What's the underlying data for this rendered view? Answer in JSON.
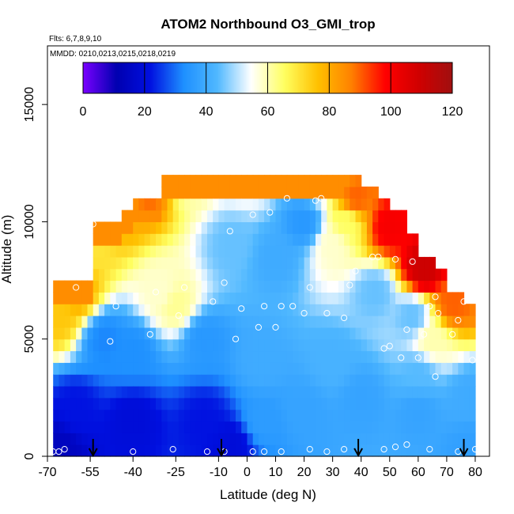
{
  "chart_data": {
    "type": "heatmap",
    "title": "ATOM2 Northbound O3_GMI_trop",
    "subtitle_flights": "Flts: 6,7,8,9,10",
    "subtitle_dates": "MMDD: 0210,0213,0215,0218,0219",
    "xlabel": "Latitude (deg N)",
    "ylabel": "Altitude (m)",
    "xlim": [
      -70,
      85
    ],
    "ylim": [
      0,
      17500
    ],
    "x_ticks": [
      "-70",
      "-55",
      "-40",
      "-25",
      "-10",
      "0",
      "10",
      "20",
      "30",
      "40",
      "50",
      "60",
      "70",
      "80"
    ],
    "x_tick_values": [
      -70,
      -55,
      -40,
      -25,
      -10,
      0,
      10,
      20,
      30,
      40,
      50,
      60,
      70,
      80
    ],
    "y_ticks": [
      "0",
      "5000",
      "10000",
      "15000"
    ],
    "y_tick_values": [
      0,
      5000,
      10000,
      15000
    ],
    "colorbar": {
      "min": 0,
      "max": 120,
      "ticks": [
        "0",
        "20",
        "40",
        "60",
        "80",
        "100",
        "120"
      ],
      "tick_values": [
        0,
        20,
        40,
        60,
        80,
        100,
        120
      ],
      "colors": [
        "#7a00ff",
        "#0000b0",
        "#0010e0",
        "#1e90ff",
        "#50b8ff",
        "#ffffff",
        "#ffff60",
        "#ffc000",
        "#ff8000",
        "#ff0000",
        "#d00000",
        "#a01010"
      ]
    },
    "domain_lat": [
      -68,
      80
    ],
    "altitude_bins_m": [
      0,
      500,
      1000,
      1500,
      2000,
      2500,
      3000,
      3500,
      4000,
      4500,
      5000,
      5500,
      6000,
      6500,
      7000,
      7500,
      8000,
      8500,
      9000,
      9500,
      10000,
      10500,
      11000,
      11500,
      12000
    ],
    "top_altitude_by_lat": [
      [
        -68,
        7500
      ],
      [
        -60,
        7500
      ],
      [
        -55,
        10000
      ],
      [
        -50,
        10000
      ],
      [
        -45,
        10500
      ],
      [
        -40,
        11000
      ],
      [
        -30,
        12000
      ],
      [
        -10,
        12000
      ],
      [
        20,
        12000
      ],
      [
        35,
        12000
      ],
      [
        40,
        11500
      ],
      [
        45,
        11000
      ],
      [
        50,
        10500
      ],
      [
        55,
        9500
      ],
      [
        60,
        8500
      ],
      [
        65,
        8000
      ],
      [
        70,
        7000
      ],
      [
        75,
        6500
      ],
      [
        80,
        5000
      ]
    ],
    "field_points": [
      {
        "lat": -66,
        "alt": 6000,
        "o3": 75
      },
      {
        "lat": -60,
        "alt": 7000,
        "o3": 80
      },
      {
        "lat": -55,
        "alt": 9000,
        "o3": 70
      },
      {
        "lat": -45,
        "alt": 10500,
        "o3": 80
      },
      {
        "lat": -35,
        "alt": 11500,
        "o3": 90
      },
      {
        "lat": -20,
        "alt": 11800,
        "o3": 60
      },
      {
        "lat": 0,
        "alt": 11800,
        "o3": 55
      },
      {
        "lat": 25,
        "alt": 11800,
        "o3": 55
      },
      {
        "lat": 38,
        "alt": 11000,
        "o3": 90
      },
      {
        "lat": 50,
        "alt": 9800,
        "o3": 100
      },
      {
        "lat": 62,
        "alt": 8000,
        "o3": 110
      },
      {
        "lat": 72,
        "alt": 6500,
        "o3": 90
      },
      {
        "lat": -30,
        "alt": 7000,
        "o3": 58
      },
      {
        "lat": -25,
        "alt": 6500,
        "o3": 62
      },
      {
        "lat": -5,
        "alt": 9000,
        "o3": 45
      },
      {
        "lat": 10,
        "alt": 8500,
        "o3": 40
      },
      {
        "lat": 20,
        "alt": 10000,
        "o3": 35
      },
      {
        "lat": 30,
        "alt": 9000,
        "o3": 58
      },
      {
        "lat": 35,
        "alt": 10000,
        "o3": 65
      },
      {
        "lat": 45,
        "alt": 7000,
        "o3": 45
      },
      {
        "lat": 58,
        "alt": 6000,
        "o3": 45
      },
      {
        "lat": 65,
        "alt": 5000,
        "o3": 60
      },
      {
        "lat": -50,
        "alt": 5000,
        "o3": 32
      },
      {
        "lat": -40,
        "alt": 4500,
        "o3": 33
      },
      {
        "lat": -15,
        "alt": 5000,
        "o3": 35
      },
      {
        "lat": 5,
        "alt": 4000,
        "o3": 40
      },
      {
        "lat": 30,
        "alt": 4000,
        "o3": 42
      },
      {
        "lat": 60,
        "alt": 3500,
        "o3": 44
      },
      {
        "lat": -60,
        "alt": 2000,
        "o3": 22
      },
      {
        "lat": -40,
        "alt": 1500,
        "o3": 20
      },
      {
        "lat": -15,
        "alt": 1500,
        "o3": 22
      },
      {
        "lat": -5,
        "alt": 500,
        "o3": 20
      },
      {
        "lat": 5,
        "alt": 1500,
        "o3": 36
      },
      {
        "lat": 20,
        "alt": 2000,
        "o3": 38
      },
      {
        "lat": 40,
        "alt": 2500,
        "o3": 38
      },
      {
        "lat": 60,
        "alt": 2000,
        "o3": 38
      },
      {
        "lat": 78,
        "alt": 2500,
        "o3": 40
      },
      {
        "lat": -66,
        "alt": 300,
        "o3": 14
      },
      {
        "lat": 78,
        "alt": 300,
        "o3": 37
      }
    ],
    "flight_points": [
      {
        "lat": -68,
        "alt": 200
      },
      {
        "lat": -66,
        "alt": 200
      },
      {
        "lat": -64,
        "alt": 300
      },
      {
        "lat": -60,
        "alt": 7200
      },
      {
        "lat": -58,
        "alt": 9600
      },
      {
        "lat": -56,
        "alt": 9800
      },
      {
        "lat": -54,
        "alt": 9900
      },
      {
        "lat": -52,
        "alt": 10500
      },
      {
        "lat": -48,
        "alt": 10600
      },
      {
        "lat": -46,
        "alt": 10600
      },
      {
        "lat": -44,
        "alt": 10700
      },
      {
        "lat": -40,
        "alt": 11300
      },
      {
        "lat": -36,
        "alt": 11700
      },
      {
        "lat": -32,
        "alt": 11800
      },
      {
        "lat": -48,
        "alt": 4900
      },
      {
        "lat": -46,
        "alt": 6400
      },
      {
        "lat": -34,
        "alt": 5200
      },
      {
        "lat": -32,
        "alt": 7000
      },
      {
        "lat": -24,
        "alt": 6000
      },
      {
        "lat": -22,
        "alt": 7200
      },
      {
        "lat": -12,
        "alt": 6600
      },
      {
        "lat": -8,
        "alt": 7400
      },
      {
        "lat": -6,
        "alt": 9600
      },
      {
        "lat": -4,
        "alt": 5000
      },
      {
        "lat": -2,
        "alt": 6300
      },
      {
        "lat": 2,
        "alt": 10300
      },
      {
        "lat": 4,
        "alt": 5500
      },
      {
        "lat": 6,
        "alt": 6400
      },
      {
        "lat": 8,
        "alt": 10400
      },
      {
        "lat": 10,
        "alt": 5500
      },
      {
        "lat": 12,
        "alt": 6400
      },
      {
        "lat": 14,
        "alt": 11000
      },
      {
        "lat": 16,
        "alt": 6400
      },
      {
        "lat": 20,
        "alt": 6100
      },
      {
        "lat": 22,
        "alt": 7200
      },
      {
        "lat": 24,
        "alt": 10900
      },
      {
        "lat": 26,
        "alt": 11000
      },
      {
        "lat": 28,
        "alt": 6100
      },
      {
        "lat": 30,
        "alt": 7200
      },
      {
        "lat": 34,
        "alt": 5900
      },
      {
        "lat": 36,
        "alt": 7300
      },
      {
        "lat": 38,
        "alt": 7900
      },
      {
        "lat": 44,
        "alt": 8500
      },
      {
        "lat": 46,
        "alt": 8500
      },
      {
        "lat": 48,
        "alt": 4600
      },
      {
        "lat": 50,
        "alt": 4700
      },
      {
        "lat": 52,
        "alt": 8400
      },
      {
        "lat": 54,
        "alt": 4200
      },
      {
        "lat": 56,
        "alt": 5400
      },
      {
        "lat": 58,
        "alt": 8300
      },
      {
        "lat": 60,
        "alt": 4200
      },
      {
        "lat": 62,
        "alt": 5200
      },
      {
        "lat": 64,
        "alt": 6400
      },
      {
        "lat": 66,
        "alt": 3400
      },
      {
        "lat": 66,
        "alt": 6800
      },
      {
        "lat": 67,
        "alt": 6100
      },
      {
        "lat": 72,
        "alt": 5200
      },
      {
        "lat": 74,
        "alt": 5800
      },
      {
        "lat": 76,
        "alt": 6600
      },
      {
        "lat": 79,
        "alt": 4100
      },
      {
        "lat": -40,
        "alt": 200
      },
      {
        "lat": -26,
        "alt": 300
      },
      {
        "lat": -14,
        "alt": 200
      },
      {
        "lat": -8,
        "alt": 200
      },
      {
        "lat": 2,
        "alt": 200
      },
      {
        "lat": 6,
        "alt": 200
      },
      {
        "lat": 12,
        "alt": 200
      },
      {
        "lat": 22,
        "alt": 300
      },
      {
        "lat": 28,
        "alt": 200
      },
      {
        "lat": 34,
        "alt": 300
      },
      {
        "lat": 48,
        "alt": 300
      },
      {
        "lat": 52,
        "alt": 400
      },
      {
        "lat": 56,
        "alt": 500
      },
      {
        "lat": 64,
        "alt": 300
      },
      {
        "lat": 74,
        "alt": 200
      },
      {
        "lat": 80,
        "alt": 300
      }
    ],
    "arrow_lats": [
      -54,
      -9,
      39,
      76
    ],
    "grid": false,
    "legend": "colorbar-top"
  }
}
